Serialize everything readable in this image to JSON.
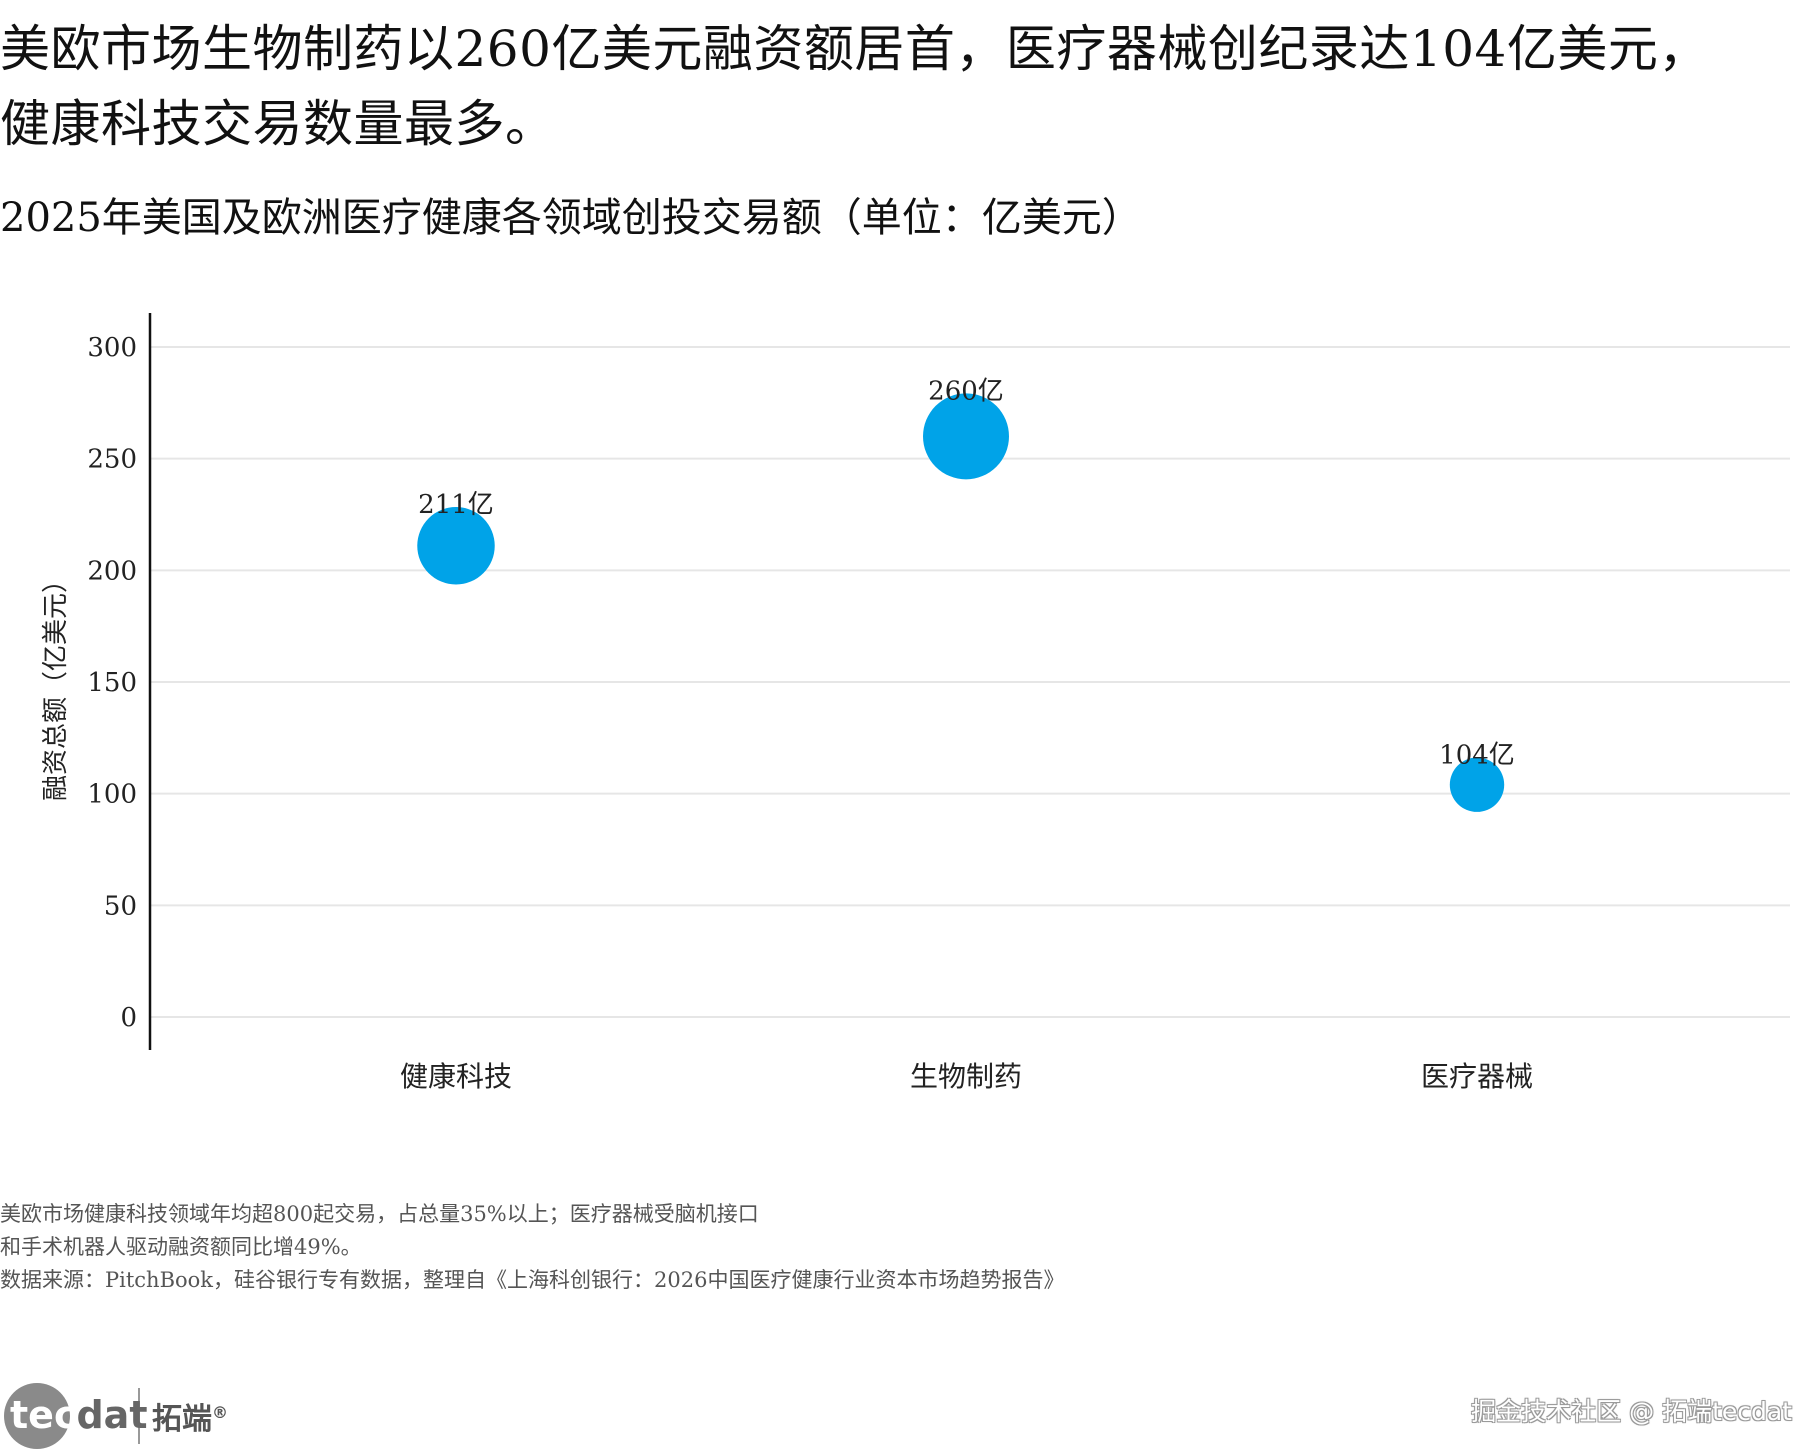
{
  "headline": {
    "line1": "美欧市场生物制药以260亿美元融资额居首，医疗器械创纪录达104亿美元，",
    "line2": "健康科技交易数量最多。"
  },
  "chart_data": {
    "type": "scatter",
    "title": "2025年美国及欧洲医疗健康各领域创投交易额（单位：亿美元）",
    "xlabel": "",
    "ylabel": "融资总额（亿美元）",
    "categories": [
      "健康科技",
      "生物制药",
      "医疗器械"
    ],
    "values": [
      211,
      260,
      104
    ],
    "data_labels": [
      "211亿",
      "260亿",
      "104亿"
    ],
    "ylim": [
      0,
      300
    ],
    "yticks": [
      "0",
      "50",
      "100",
      "150",
      "200",
      "250",
      "300"
    ],
    "grid": true,
    "marker_color": "#00A3E8",
    "grid_color": "#e6e6e6"
  },
  "notes": {
    "line1": "美欧市场健康科技领域年均超800起交易，占总量35%以上；医疗器械受脑机接口",
    "line2": "和手术机器人驱动融资额同比增49%。",
    "source": "数据来源：PitchBook，硅谷银行专有数据，整理自《上海科创银行：2026中国医疗健康行业资本市场趋势报告》"
  },
  "footer": {
    "logo_en_a": "tec",
    "logo_en_b": "dat",
    "logo_cn": "拓端",
    "logo_reg": "®",
    "watermark": "掘金技术社区 @ 拓端tecdat"
  }
}
